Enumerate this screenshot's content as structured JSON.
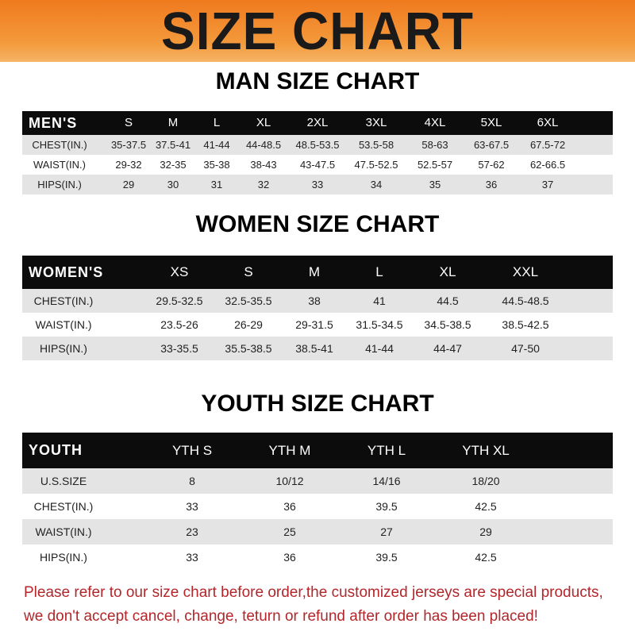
{
  "title": "SIZE CHART",
  "men": {
    "title": "MAN SIZE CHART",
    "header": [
      "MEN'S",
      "S",
      "M",
      "L",
      "XL",
      "2XL",
      "3XL",
      "4XL",
      "5XL",
      "6XL"
    ],
    "rows": [
      [
        "CHEST(IN.)",
        "35-37.5",
        "37.5-41",
        "41-44",
        "44-48.5",
        "48.5-53.5",
        "53.5-58",
        "58-63",
        "63-67.5",
        "67.5-72"
      ],
      [
        "WAIST(IN.)",
        "29-32",
        "32-35",
        "35-38",
        "38-43",
        "43-47.5",
        "47.5-52.5",
        "52.5-57",
        "57-62",
        "62-66.5"
      ],
      [
        "HIPS(IN.)",
        "29",
        "30",
        "31",
        "32",
        "33",
        "34",
        "35",
        "36",
        "37"
      ]
    ]
  },
  "women": {
    "title": "WOMEN SIZE CHART",
    "header": [
      "WOMEN'S",
      "XS",
      "S",
      "M",
      "L",
      "XL",
      "XXL"
    ],
    "rows": [
      [
        "CHEST(IN.)",
        "29.5-32.5",
        "32.5-35.5",
        "38",
        "41",
        "44.5",
        "44.5-48.5"
      ],
      [
        "WAIST(IN.)",
        "23.5-26",
        "26-29",
        "29-31.5",
        "31.5-34.5",
        "34.5-38.5",
        "38.5-42.5"
      ],
      [
        "HIPS(IN.)",
        "33-35.5",
        "35.5-38.5",
        "38.5-41",
        "41-44",
        "44-47",
        "47-50"
      ]
    ]
  },
  "youth": {
    "title": "YOUTH SIZE CHART",
    "header": [
      "YOUTH",
      "YTH S",
      "YTH M",
      "YTH L",
      "YTH XL"
    ],
    "rows": [
      [
        "U.S.SIZE",
        "8",
        "10/12",
        "14/16",
        "18/20"
      ],
      [
        "CHEST(IN.)",
        "33",
        "36",
        "39.5",
        "42.5"
      ],
      [
        "WAIST(IN.)",
        "23",
        "25",
        "27",
        "29"
      ],
      [
        "HIPS(IN.)",
        "33",
        "36",
        "39.5",
        "42.5"
      ]
    ]
  },
  "footer": [
    "Please refer to our size chart before order,the customized jerseys are special products,",
    "we don't accept cancel, change, teturn or refund after order has been placed!"
  ],
  "colors": {
    "banner": "#f07a1e",
    "header_row": "#0c0c0c",
    "stripe": "#e4e4e4",
    "notice": "#b3262a"
  }
}
